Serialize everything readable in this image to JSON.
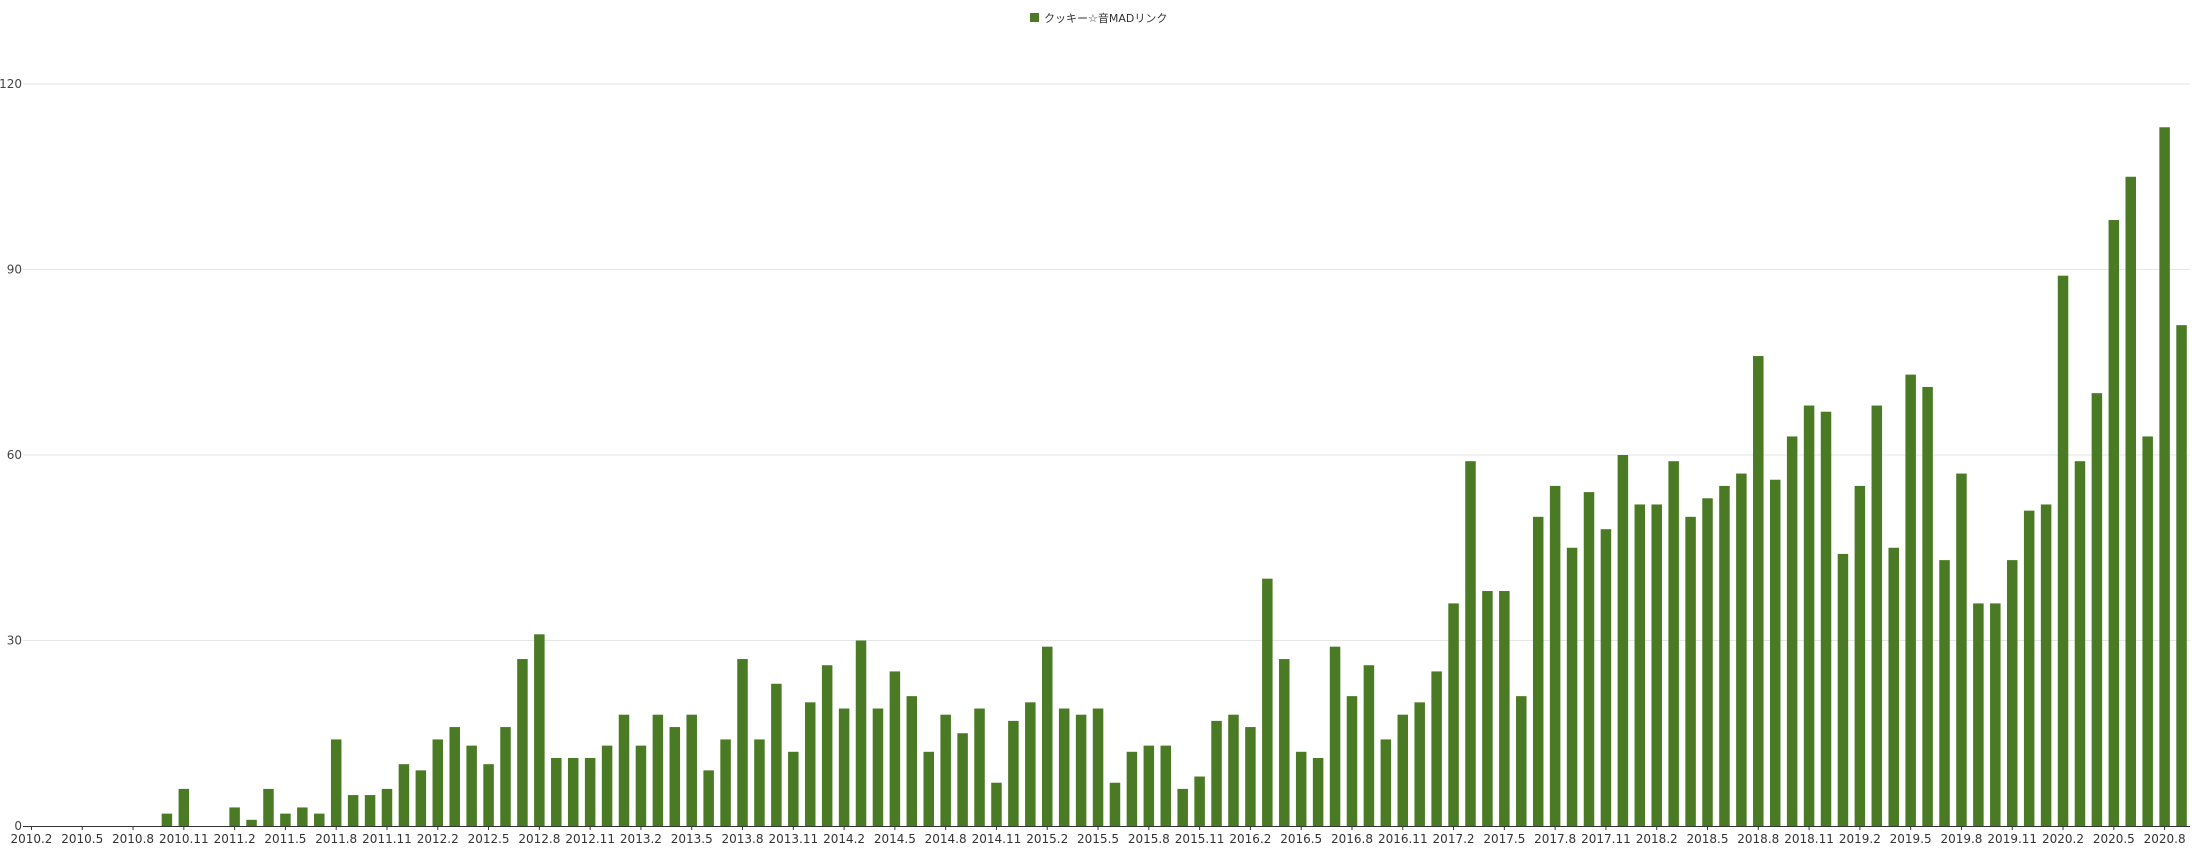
{
  "chart_data": {
    "type": "bar",
    "legend": {
      "position": "top-center"
    },
    "grid": true,
    "ylim": [
      0,
      120
    ],
    "y_ticks": [
      "0",
      "30",
      "60",
      "90",
      "120"
    ],
    "series": [
      {
        "name": "クッキー☆音MADリンク",
        "color": "#4a7a24",
        "values": [
          0,
          0,
          0,
          0,
          0,
          0,
          0,
          0,
          2,
          6,
          0,
          0,
          3,
          1,
          6,
          2,
          3,
          2,
          14,
          5,
          5,
          6,
          10,
          9,
          14,
          16,
          13,
          10,
          16,
          27,
          31,
          11,
          11,
          11,
          13,
          18,
          13,
          18,
          16,
          18,
          9,
          14,
          27,
          14,
          23,
          12,
          20,
          26,
          19,
          30,
          19,
          25,
          21,
          12,
          18,
          15,
          19,
          7,
          17,
          20,
          29,
          19,
          18,
          19,
          7,
          12,
          13,
          13,
          6,
          8,
          17,
          18,
          16,
          40,
          27,
          12,
          11,
          29,
          21,
          26,
          14,
          18,
          20,
          25,
          36,
          59,
          38,
          38,
          21,
          50,
          55,
          45,
          54,
          48,
          60,
          52,
          52,
          59,
          50,
          53,
          55,
          57,
          76,
          56,
          63,
          68,
          67,
          44,
          55,
          68,
          45,
          73,
          71,
          43,
          57,
          36,
          36,
          43,
          51,
          52,
          89,
          59,
          70,
          98,
          105,
          63,
          113,
          81
        ]
      }
    ],
    "x_tick_labels": [
      "2010.2",
      "2010.5",
      "2010.8",
      "2010.11",
      "2011.2",
      "2011.5",
      "2011.8",
      "2011.11",
      "2012.2",
      "2012.5",
      "2012.8",
      "2012.11",
      "2013.2",
      "2013.5",
      "2013.8",
      "2013.11",
      "2014.2",
      "2014.5",
      "2014.8",
      "2014.11",
      "2015.2",
      "2015.5",
      "2015.8",
      "2015.11",
      "2016.2",
      "2016.5",
      "2016.8",
      "2016.11",
      "2017.2",
      "2017.5",
      "2017.8",
      "2017.11",
      "2018.2",
      "2018.5",
      "2018.8",
      "2018.11",
      "2019.2",
      "2019.5",
      "2019.8",
      "2019.11",
      "2020.2",
      "2020.5",
      "2020.8"
    ],
    "x_tick_every": 3,
    "colors": {
      "bar": "#4a7a24",
      "grid": "#e6e6e6",
      "axis": "#333333"
    }
  }
}
